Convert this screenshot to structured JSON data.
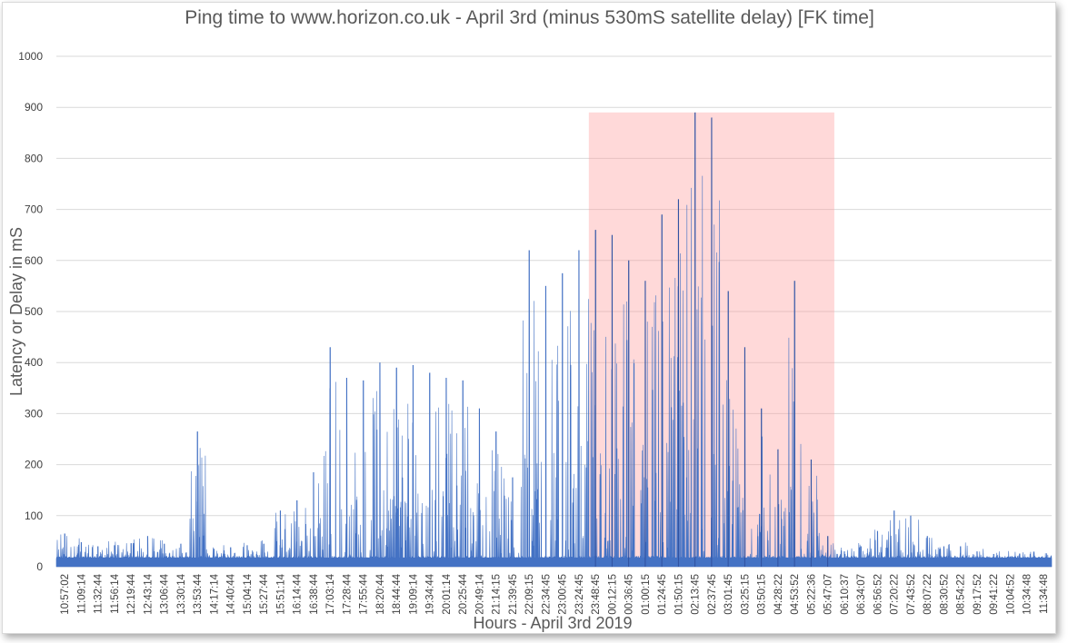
{
  "chart_data": {
    "type": "area",
    "title": "Ping time to www.horizon.co.uk  - April 3rd (minus 530mS satellite delay) [FK time]",
    "xlabel": "Hours - April 3rd 2019",
    "ylabel": "Latency or Delay in mS",
    "ylim": [
      0,
      1000
    ],
    "yticks": [
      0,
      100,
      200,
      300,
      400,
      500,
      600,
      700,
      800,
      900,
      1000
    ],
    "grid": true,
    "legend": "none",
    "colors": {
      "series": "#4472c4",
      "series_dark": "#2f4f9e",
      "highlight": "#ff9a9a",
      "grid": "#d9d9d9"
    },
    "x": [
      "10:57:02",
      "11:09:14",
      "11:32:44",
      "11:56:14",
      "12:19:44",
      "12:43:14",
      "13:06:44",
      "13:30:14",
      "13:53:44",
      "14:17:14",
      "14:40:44",
      "15:04:14",
      "15:27:44",
      "15:51:14",
      "16:14:44",
      "16:38:44",
      "17:03:14",
      "17:28:44",
      "17:55:44",
      "18:20:44",
      "18:44:44",
      "19:09:14",
      "19:34:44",
      "20:01:14",
      "20:25:44",
      "20:49:14",
      "21:14:15",
      "21:39:45",
      "22:09:15",
      "22:34:45",
      "23:00:45",
      "23:24:45",
      "23:48:45",
      "00:12:15",
      "00:36:45",
      "01:00:15",
      "01:24:45",
      "01:50:15",
      "02:13:45",
      "02:37:45",
      "03:01:45",
      "03:25:15",
      "03:50:15",
      "04:28:22",
      "04:53:52",
      "05:22:36",
      "05:47:07",
      "06:10:37",
      "06:34:07",
      "06:56:52",
      "07:20:22",
      "07:43:52",
      "08:07:22",
      "08:30:52",
      "08:54:22",
      "09:17:52",
      "09:41:22",
      "10:04:52",
      "10:34:48",
      "11:34:48"
    ],
    "peaks_per_interval": [
      65,
      48,
      40,
      42,
      46,
      60,
      45,
      45,
      265,
      35,
      38,
      42,
      45,
      110,
      130,
      185,
      430,
      370,
      365,
      400,
      390,
      395,
      380,
      370,
      365,
      310,
      265,
      175,
      620,
      550,
      575,
      620,
      660,
      650,
      600,
      560,
      690,
      720,
      890,
      880,
      540,
      430,
      310,
      230,
      560,
      210,
      60,
      30,
      40,
      70,
      110,
      100,
      60,
      40,
      40,
      30,
      25,
      20,
      18,
      15
    ],
    "highlight_band": {
      "from": "23:48:45",
      "to": "05:47:07",
      "ymax": 890
    },
    "baseline_ms": 15
  }
}
